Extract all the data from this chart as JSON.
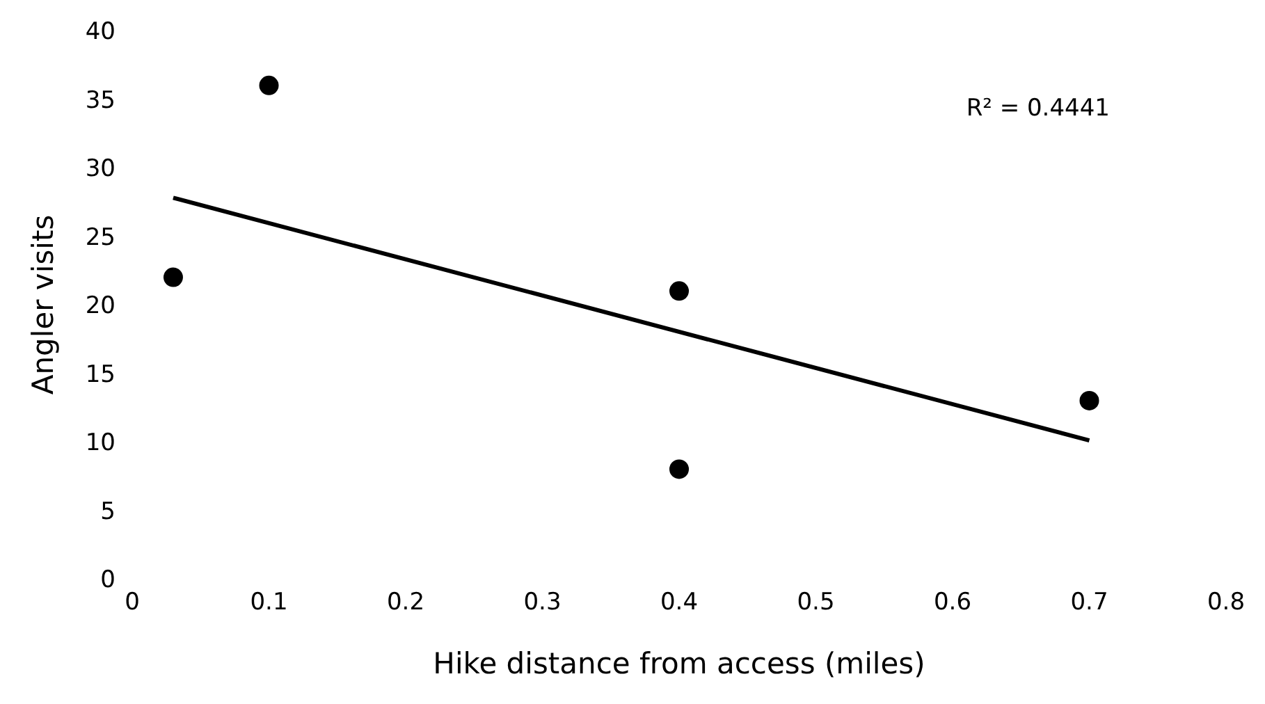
{
  "chart_data": {
    "type": "scatter",
    "xlabel": "Hike distance from access (miles)",
    "ylabel": "Angler visits",
    "x": [
      0.03,
      0.1,
      0.4,
      0.4,
      0.7
    ],
    "series": [
      {
        "color": "#000000",
        "values": [
          22,
          36,
          21,
          8,
          13
        ],
        "marker": "circle"
      },
      {
        "type": "line",
        "color": "#000000",
        "x": [
          0.03,
          0.7
        ],
        "values": [
          27.8,
          10.1
        ],
        "marker": "none",
        "line_style": "solid"
      }
    ],
    "xlim": [
      0,
      0.8
    ],
    "xticks": [
      0,
      0.1,
      0.2,
      0.3,
      0.4,
      0.5,
      0.6,
      0.7,
      0.8
    ],
    "ylim": [
      0,
      40
    ],
    "yticks": [
      0,
      5,
      10,
      15,
      20,
      25,
      30,
      35,
      40
    ],
    "annotations": [
      "R² = 0.4441"
    ],
    "grid": false
  }
}
